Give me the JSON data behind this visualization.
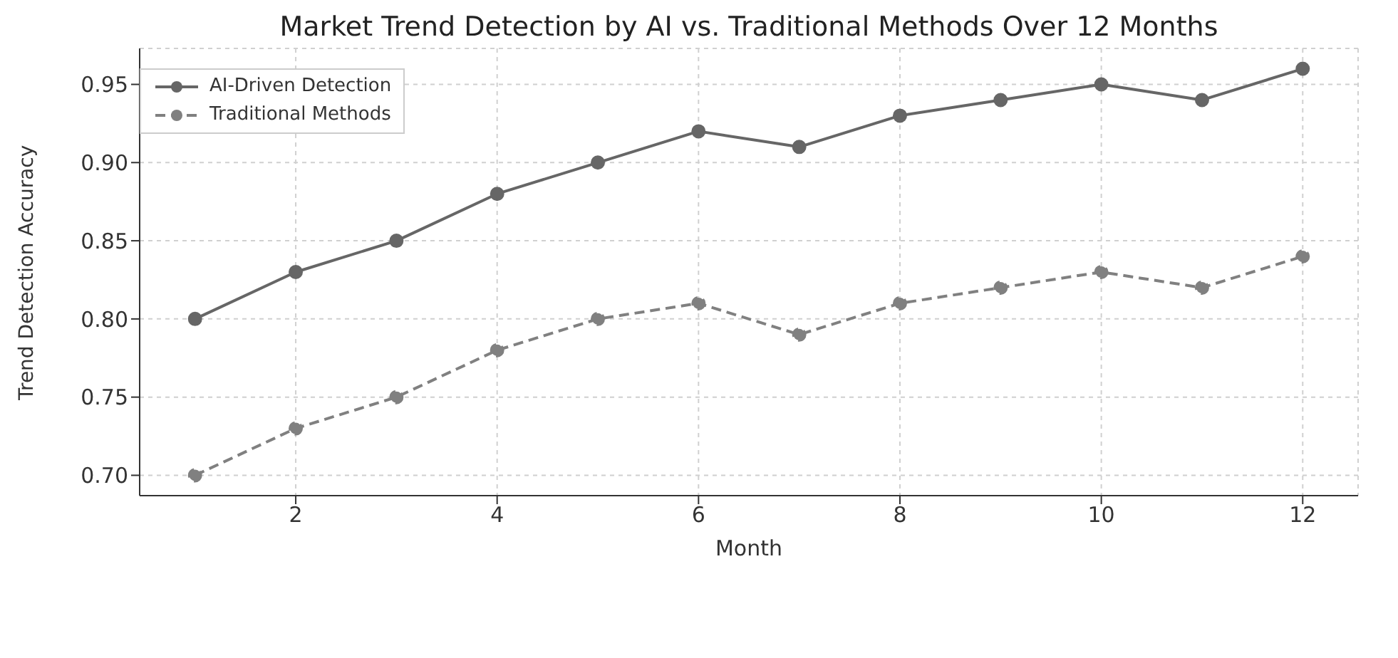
{
  "chart_data": {
    "type": "line",
    "title": "Market Trend Detection by AI vs. Traditional Methods Over 12 Months",
    "xlabel": "Month",
    "ylabel": "Trend Detection Accuracy",
    "x": [
      1,
      2,
      3,
      4,
      5,
      6,
      7,
      8,
      9,
      10,
      11,
      12
    ],
    "series": [
      {
        "name": "AI-Driven Detection",
        "color": "#666666",
        "line_style": "solid",
        "values": [
          0.8,
          0.83,
          0.85,
          0.88,
          0.9,
          0.92,
          0.91,
          0.93,
          0.94,
          0.95,
          0.94,
          0.96
        ]
      },
      {
        "name": "Traditional Methods",
        "color": "#808080",
        "line_style": "dashed",
        "values": [
          0.7,
          0.73,
          0.75,
          0.78,
          0.8,
          0.81,
          0.79,
          0.81,
          0.82,
          0.83,
          0.82,
          0.84
        ]
      }
    ],
    "xlim": [
      0.45,
      12.55
    ],
    "xticks": [
      2,
      4,
      6,
      8,
      10,
      12
    ],
    "ylim": [
      0.687,
      0.973
    ],
    "yticks": [
      {
        "value": 0.7,
        "label": "0.70"
      },
      {
        "value": 0.75,
        "label": "0.75"
      },
      {
        "value": 0.8,
        "label": "0.80"
      },
      {
        "value": 0.85,
        "label": "0.85"
      },
      {
        "value": 0.9,
        "label": "0.90"
      },
      {
        "value": 0.95,
        "label": "0.95"
      }
    ],
    "grid": true,
    "legend": "top left",
    "marker": "circle"
  }
}
